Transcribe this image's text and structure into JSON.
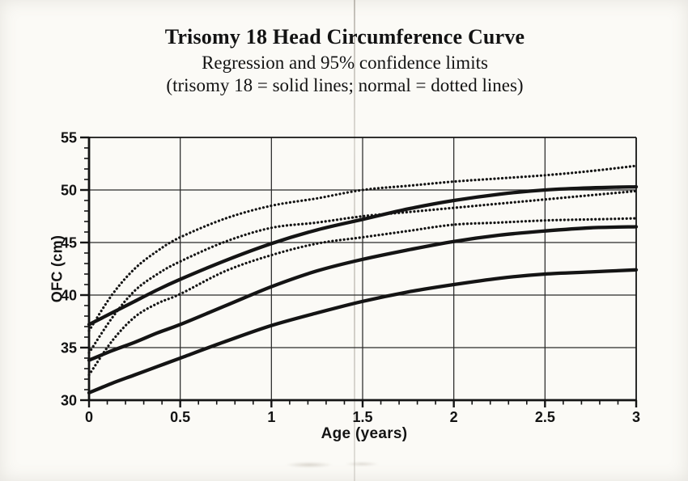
{
  "chart_data": {
    "type": "line",
    "title": "Trisomy 18 Head Circumference Curve",
    "subtitle": "Regression and 95% confidence limits",
    "legend_note": "(trisomy 18 = solid lines; normal = dotted lines)",
    "xlabel": "Age (years)",
    "ylabel": "OFC (cm)",
    "xlim": [
      0,
      3
    ],
    "ylim": [
      30,
      55
    ],
    "x_tick_labels": [
      "0",
      "0.5",
      "1",
      "1.5",
      "2",
      "2.5",
      "3"
    ],
    "x_major_ticks": [
      0,
      0.5,
      1,
      1.5,
      2,
      2.5,
      3
    ],
    "x_minor_step": 0.1,
    "y_tick_labels": [
      "30",
      "35",
      "40",
      "45",
      "50",
      "55"
    ],
    "y_major_ticks": [
      30,
      35,
      40,
      45,
      50,
      55
    ],
    "y_minor_step": 1,
    "grid": true,
    "legend_position": "none",
    "ink_color": "#141414",
    "x": [
      0,
      0.125,
      0.25,
      0.375,
      0.5,
      0.75,
      1,
      1.25,
      1.5,
      1.75,
      2,
      2.25,
      2.5,
      2.75,
      3
    ],
    "series": [
      {
        "name": "trisomy18-upper-95",
        "group": "trisomy 18",
        "style": "solid",
        "values": [
          37.2,
          38.3,
          39.4,
          40.5,
          41.5,
          43.3,
          44.9,
          46.2,
          47.2,
          48.2,
          49.0,
          49.6,
          50.0,
          50.2,
          50.3
        ]
      },
      {
        "name": "trisomy18-regression-mean",
        "group": "trisomy 18",
        "style": "solid",
        "values": [
          33.8,
          34.7,
          35.5,
          36.4,
          37.2,
          39.0,
          40.8,
          42.3,
          43.4,
          44.3,
          45.1,
          45.7,
          46.1,
          46.4,
          46.5
        ]
      },
      {
        "name": "trisomy18-lower-95",
        "group": "trisomy 18",
        "style": "solid",
        "values": [
          30.7,
          31.6,
          32.4,
          33.2,
          34.0,
          35.6,
          37.1,
          38.3,
          39.4,
          40.3,
          41.0,
          41.6,
          42.0,
          42.2,
          42.4
        ]
      },
      {
        "name": "normal-upper-95",
        "group": "normal",
        "style": "dotted",
        "values": [
          36.6,
          40.0,
          42.5,
          44.2,
          45.5,
          47.3,
          48.5,
          49.2,
          50.0,
          50.4,
          50.8,
          51.1,
          51.4,
          51.8,
          52.3
        ]
      },
      {
        "name": "normal-regression-mean",
        "group": "normal",
        "style": "dotted",
        "values": [
          34.5,
          37.8,
          40.4,
          42.0,
          43.2,
          45.1,
          46.4,
          46.9,
          47.5,
          47.9,
          48.3,
          48.7,
          49.1,
          49.5,
          49.9
        ]
      },
      {
        "name": "normal-lower-95",
        "group": "normal",
        "style": "dotted",
        "values": [
          32.4,
          35.6,
          37.9,
          39.2,
          40.1,
          42.3,
          43.8,
          44.9,
          45.5,
          46.1,
          46.7,
          46.9,
          47.1,
          47.2,
          47.3
        ]
      }
    ]
  }
}
